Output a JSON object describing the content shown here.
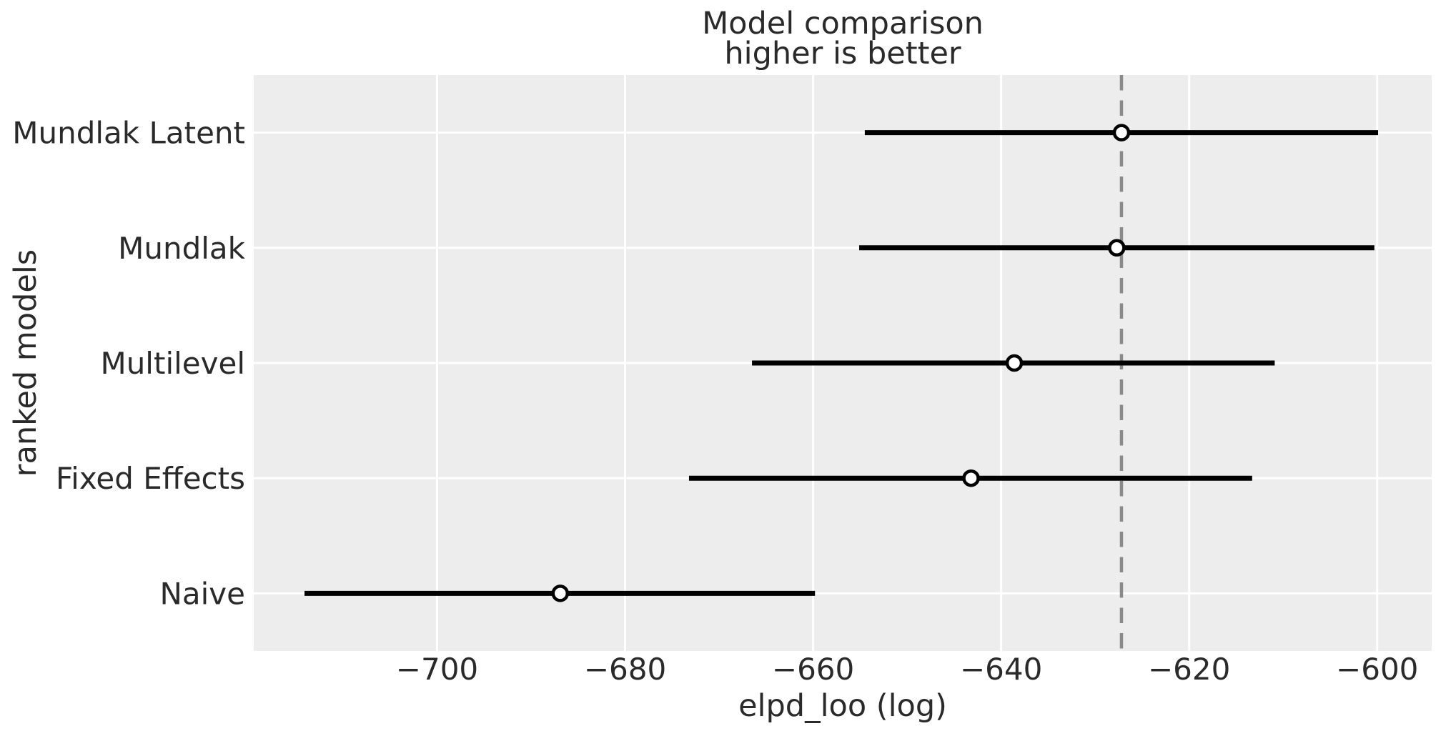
{
  "figure": {
    "title_line1": "Model comparison",
    "title_line2": "higher is better"
  },
  "chart_data": {
    "type": "scatter",
    "subtype": "forest-errorbar-horizontal",
    "title": "Model comparison\nhigher is better",
    "xlabel": "elpd_loo (log)",
    "ylabel": "ranked models",
    "categories": [
      "Mundlak Latent",
      "Mundlak",
      "Multilevel",
      "Fixed Effects",
      "Naive"
    ],
    "series": [
      {
        "name": "elpd_loo",
        "values": [
          -627.2,
          -627.7,
          -638.6,
          -643.2,
          -686.9
        ]
      },
      {
        "name": "ci_lower",
        "values": [
          -654.5,
          -655.1,
          -666.5,
          -673.2,
          -714.1
        ]
      },
      {
        "name": "ci_upper",
        "values": [
          -599.9,
          -600.3,
          -610.9,
          -613.3,
          -659.8
        ]
      }
    ],
    "reference_line_x": -627.2,
    "x_ticks": [
      -700,
      -680,
      -660,
      -640,
      -620,
      -600
    ],
    "xlim": [
      -719.5,
      -594.2
    ],
    "grid": true,
    "legend": false,
    "colors": {
      "plot_background": "#ededed",
      "grid_line": "#ffffff",
      "error_bar": "#000000",
      "marker_fill": "#ffffff",
      "marker_edge": "#000000",
      "reference_line": "#8a8a8a",
      "text": "#2a2a2a"
    }
  }
}
